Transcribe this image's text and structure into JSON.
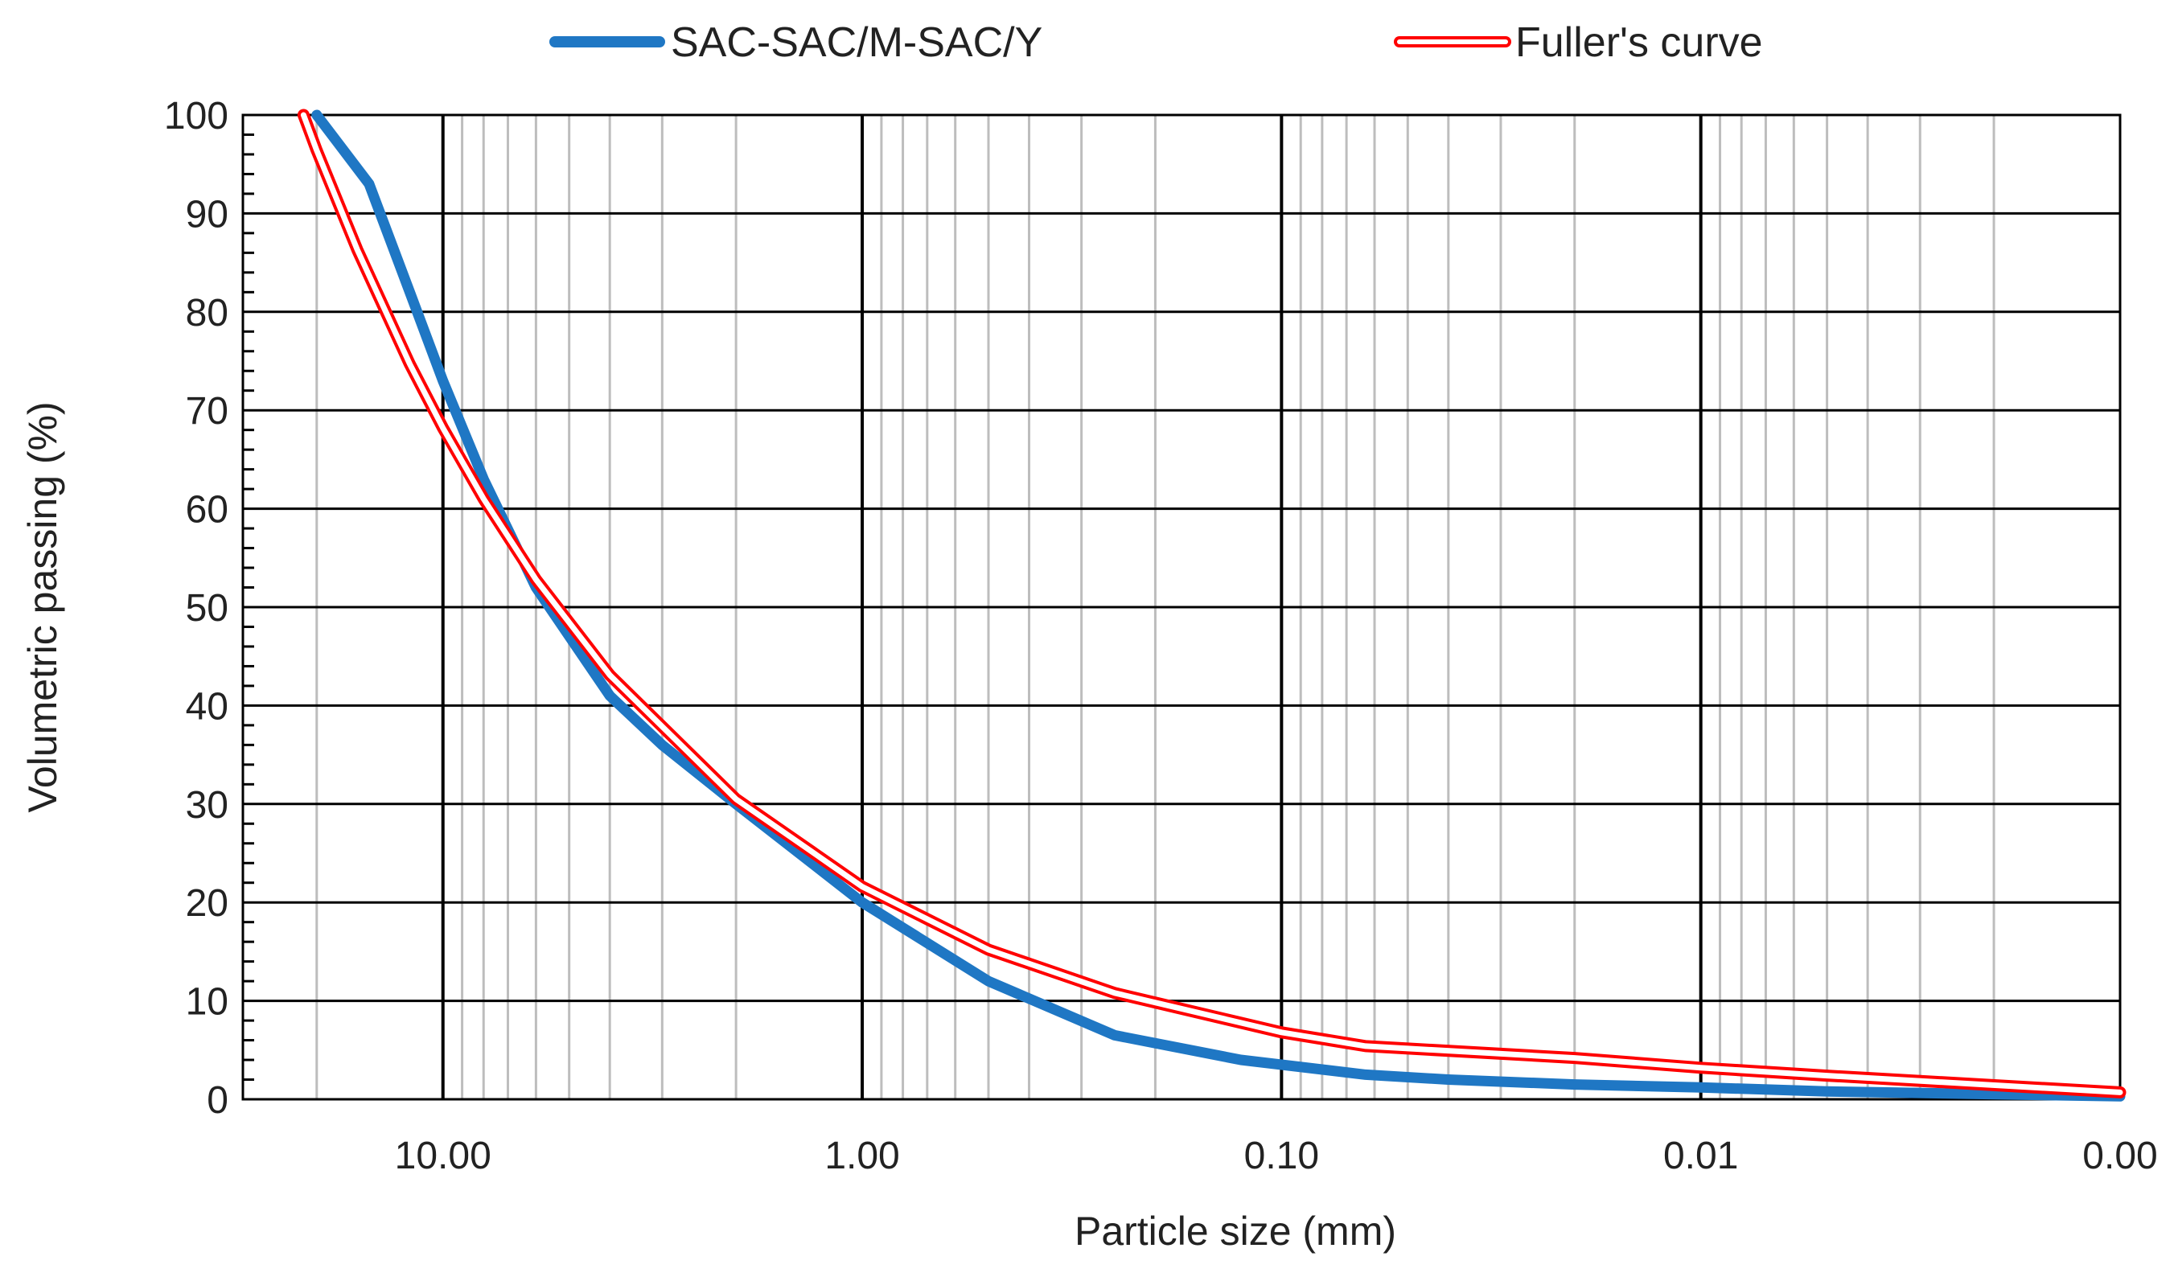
{
  "chart_data": {
    "type": "line",
    "title": "",
    "xlabel": "Particle size (mm)",
    "ylabel": "Volumetric passing (%)",
    "x_scale": "log",
    "x_reversed": true,
    "xlim": [
      0.001,
      30
    ],
    "ylim": [
      0,
      100
    ],
    "x_ticks": [
      10,
      1,
      0.1,
      0.01,
      0.001
    ],
    "x_tick_labels": [
      "10.00",
      "1.00",
      "0.10",
      "0.01",
      "0.00"
    ],
    "y_ticks": [
      0,
      10,
      20,
      30,
      40,
      50,
      60,
      70,
      80,
      90,
      100
    ],
    "y_tick_labels": [
      "0",
      "10",
      "20",
      "30",
      "40",
      "50",
      "60",
      "70",
      "80",
      "90",
      "100"
    ],
    "grid": true,
    "legend_position": "top",
    "series": [
      {
        "name": "SAC-SAC/M-SAC/Y",
        "color": "#1f77c4",
        "style": "thick-line",
        "x": [
          20,
          15,
          12,
          10,
          8,
          6,
          4,
          3,
          2,
          1,
          0.5,
          0.25,
          0.125,
          0.063,
          0.04,
          0.02,
          0.01,
          0.005,
          0.001
        ],
        "y": [
          100,
          93,
          82,
          73,
          63,
          52,
          41,
          36,
          30,
          20,
          12,
          6.5,
          4,
          2.5,
          2,
          1.5,
          1.2,
          0.8,
          0.3
        ]
      },
      {
        "name": "Fuller's curve",
        "color": "#ff0000",
        "style": "double-line",
        "x": [
          21.5,
          20,
          16,
          12,
          10,
          8,
          6,
          4,
          2,
          1,
          0.5,
          0.25,
          0.1,
          0.063,
          0.02,
          0.01,
          0.005,
          0.001
        ],
        "y": [
          100,
          96.4,
          86.3,
          74.7,
          68.2,
          61.0,
          52.8,
          43.1,
          30.5,
          21.6,
          15.2,
          10.8,
          6.8,
          5.4,
          4.2,
          3.2,
          2.4,
          0.7
        ]
      }
    ]
  }
}
